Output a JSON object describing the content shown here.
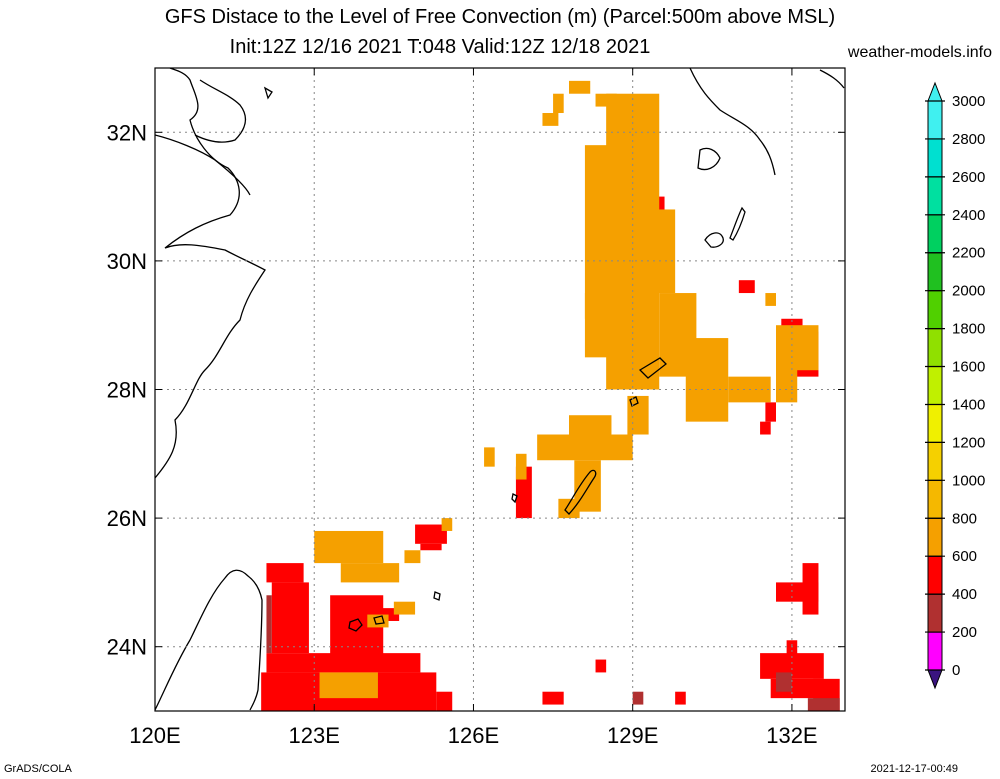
{
  "title": {
    "line1": "GFS Distace to the Level of Free Convection (m) (Parcel:500m above MSL)",
    "line2": "Init:12Z 12/16 2021 T:048 Valid:12Z 12/18 2021"
  },
  "source": "weather-models.info",
  "footer": {
    "left": "GrADS/COLA",
    "right": "2021-12-17-00:49"
  },
  "map": {
    "lon_range": [
      120,
      133
    ],
    "lat_range": [
      23,
      33
    ],
    "lon_ticks": [
      {
        "value": 120,
        "label": "120E"
      },
      {
        "value": 123,
        "label": "123E"
      },
      {
        "value": 126,
        "label": "126E"
      },
      {
        "value": 129,
        "label": "129E"
      },
      {
        "value": 132,
        "label": "132E"
      }
    ],
    "lat_ticks": [
      {
        "value": 24,
        "label": "24N"
      },
      {
        "value": 26,
        "label": "26N"
      },
      {
        "value": 28,
        "label": "28N"
      },
      {
        "value": 30,
        "label": "30N"
      },
      {
        "value": 32,
        "label": "32N"
      }
    ],
    "grid": true
  },
  "colorbar": {
    "levels": [
      "0",
      "200",
      "400",
      "600",
      "800",
      "1000",
      "1200",
      "1400",
      "1600",
      "1800",
      "2000",
      "2200",
      "2400",
      "2600",
      "2800",
      "3000"
    ],
    "colors": [
      "#3a1480",
      "#ff00ff",
      "#b03030",
      "#ff0000",
      "#f5a000",
      "#f5b800",
      "#f5d000",
      "#f0f000",
      "#c0f000",
      "#90e000",
      "#50d000",
      "#20c020",
      "#00d060",
      "#00e0a0",
      "#00e0d0",
      "#40f0f0"
    ],
    "under_color": "#3a1480",
    "over_color": "#40f0f0"
  },
  "field": {
    "red": [
      [
        122.1,
        25.3,
        122.8,
        25.0
      ],
      [
        122.2,
        25.0,
        122.9,
        23.9
      ],
      [
        123.3,
        24.8,
        124.3,
        23.8
      ],
      [
        122.1,
        23.9,
        125.0,
        23.6
      ],
      [
        122.0,
        23.6,
        125.3,
        23.0
      ],
      [
        125.3,
        23.3,
        125.6,
        23.0
      ],
      [
        124.1,
        24.6,
        124.6,
        24.4
      ],
      [
        124.9,
        25.9,
        125.5,
        25.6
      ],
      [
        125.0,
        25.6,
        125.4,
        25.5
      ],
      [
        131.7,
        25.0,
        132.5,
        24.7
      ],
      [
        132.2,
        25.3,
        132.5,
        24.5
      ],
      [
        131.9,
        24.1,
        132.1,
        23.8
      ],
      [
        131.4,
        23.9,
        132.6,
        23.5
      ],
      [
        131.6,
        23.5,
        132.6,
        23.2
      ],
      [
        132.4,
        23.5,
        132.9,
        23.0
      ],
      [
        127.3,
        23.3,
        127.7,
        23.1
      ],
      [
        128.3,
        23.8,
        128.5,
        23.6
      ],
      [
        129.8,
        23.3,
        130.0,
        23.1
      ],
      [
        131.9,
        28.9,
        132.5,
        28.2
      ],
      [
        131.8,
        29.1,
        132.2,
        28.9
      ],
      [
        131.0,
        29.7,
        131.3,
        29.5
      ],
      [
        131.5,
        27.8,
        131.7,
        27.5
      ],
      [
        131.4,
        27.5,
        131.6,
        27.3
      ],
      [
        128.2,
        28.8,
        128.6,
        28.6
      ],
      [
        126.8,
        26.8,
        127.1,
        26.0
      ],
      [
        128.7,
        31.8,
        129.3,
        30.5
      ],
      [
        129.4,
        31.0,
        129.6,
        30.6
      ]
    ],
    "orange": [
      [
        123.0,
        25.8,
        124.3,
        25.3
      ],
      [
        123.5,
        25.3,
        124.6,
        25.0
      ],
      [
        125.4,
        26.0,
        125.6,
        25.8
      ],
      [
        124.7,
        25.5,
        125.0,
        25.3
      ],
      [
        124.5,
        24.7,
        124.9,
        24.5
      ],
      [
        123.1,
        23.6,
        124.2,
        23.2
      ],
      [
        124.0,
        24.5,
        124.4,
        24.3
      ],
      [
        128.5,
        32.6,
        129.5,
        28.0
      ],
      [
        128.1,
        31.8,
        128.6,
        29.1
      ],
      [
        128.1,
        29.5,
        129.0,
        28.5
      ],
      [
        129.0,
        30.8,
        129.8,
        29.5
      ],
      [
        129.5,
        29.5,
        130.2,
        28.2
      ],
      [
        130.0,
        28.8,
        130.8,
        27.5
      ],
      [
        130.8,
        28.2,
        131.6,
        27.8
      ],
      [
        128.9,
        27.9,
        129.3,
        27.3
      ],
      [
        127.2,
        27.3,
        129.0,
        26.9
      ],
      [
        127.8,
        27.6,
        128.6,
        27.0
      ],
      [
        127.9,
        26.9,
        128.4,
        26.1
      ],
      [
        127.6,
        26.3,
        128.0,
        26.0
      ],
      [
        126.2,
        27.1,
        126.4,
        26.8
      ],
      [
        126.8,
        27.0,
        127.0,
        26.6
      ],
      [
        131.7,
        29.0,
        132.5,
        28.3
      ],
      [
        131.7,
        28.4,
        132.1,
        27.8
      ],
      [
        131.5,
        29.5,
        131.7,
        29.3
      ],
      [
        127.8,
        32.8,
        128.2,
        32.6
      ],
      [
        127.5,
        32.6,
        127.7,
        32.3
      ],
      [
        127.3,
        32.3,
        127.6,
        32.1
      ],
      [
        128.3,
        32.6,
        128.7,
        32.4
      ]
    ],
    "darkred": [
      [
        131.7,
        23.6,
        132.0,
        23.3
      ],
      [
        132.3,
        23.2,
        132.9,
        23.0
      ],
      [
        129.0,
        23.3,
        129.2,
        23.1
      ],
      [
        122.1,
        24.8,
        122.2,
        23.9
      ]
    ]
  }
}
